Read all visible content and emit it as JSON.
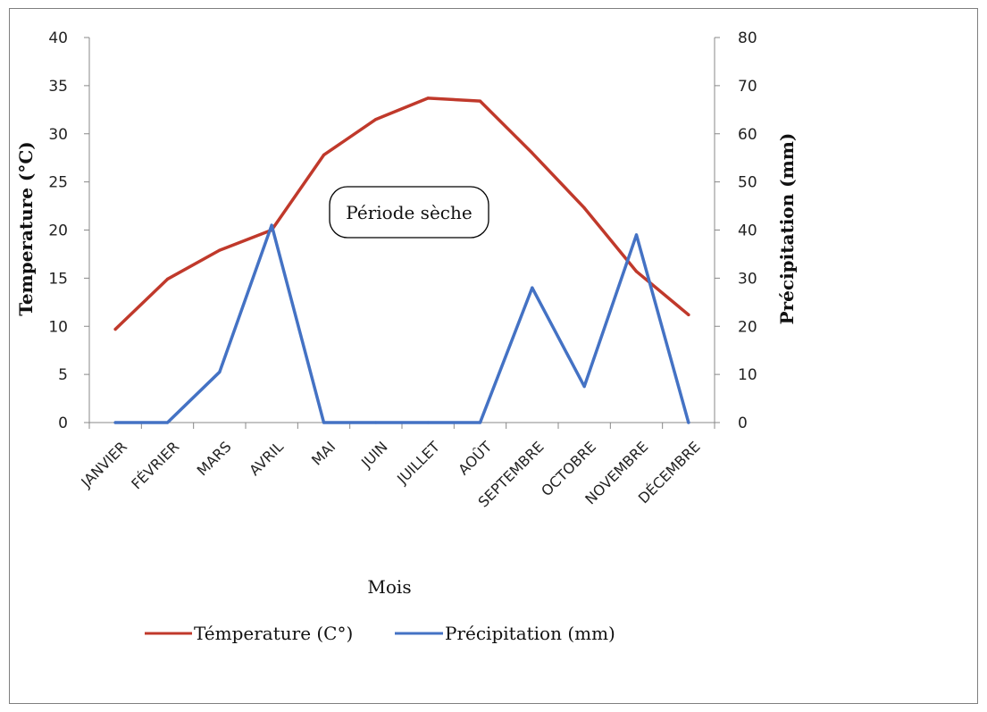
{
  "chart_data": {
    "type": "line",
    "categories": [
      "JANVIER",
      "FÉVRIER",
      "MARS",
      "AVRIL",
      "MAI",
      "JUIN",
      "JUILLET",
      "AOÛT",
      "SEPTEMBRE",
      "OCTOBRE",
      "NOVEMBRE",
      "DÉCEMBRE"
    ],
    "series": [
      {
        "name": "Témperature (C°)",
        "axis": "left",
        "color": "#c0392b",
        "values": [
          9.7,
          14.9,
          17.9,
          20.0,
          27.8,
          31.5,
          33.7,
          33.4,
          28.0,
          22.3,
          15.7,
          11.2
        ]
      },
      {
        "name": "Précipitation (mm)",
        "axis": "right",
        "color": "#4472c4",
        "values": [
          0,
          0,
          10.5,
          41,
          0,
          0,
          0,
          0,
          28,
          7.5,
          39,
          0
        ]
      }
    ],
    "xlabel": "Mois",
    "ylabel": "Temperature (°C)",
    "y2label": "Précipitation (mm)",
    "ylim": [
      0,
      40
    ],
    "y2lim": [
      0,
      80
    ],
    "yticks": [
      "0",
      "5",
      "10",
      "15",
      "20",
      "25",
      "30",
      "35",
      "40"
    ],
    "y2ticks": [
      "0",
      "10",
      "20",
      "30",
      "40",
      "50",
      "60",
      "70",
      "80"
    ],
    "annotation": "Période sèche",
    "legend_position": "bottom",
    "grid": false
  }
}
